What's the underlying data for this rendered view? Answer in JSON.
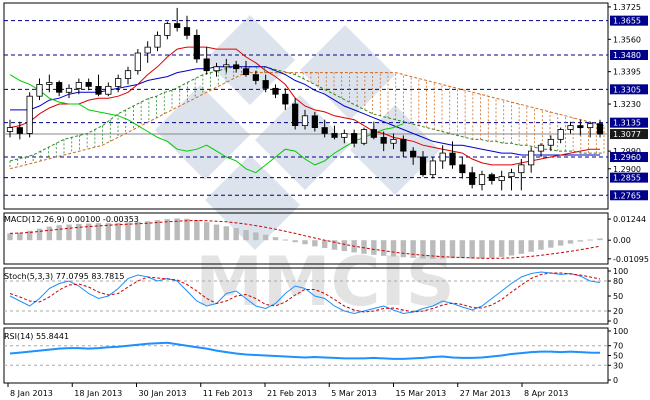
{
  "chart_data": {
    "type": "candlestick",
    "watermark": "MMCIS",
    "x_labels": [
      "8 Jan 2013",
      "18 Jan 2013",
      "30 Jan 2013",
      "11 Feb 2013",
      "21 Feb 2013",
      "5 Mar 2013",
      "15 Mar 2013",
      "27 Mar 2013",
      "8 Apr 2013"
    ],
    "price_axis": {
      "ylim": [
        1.2695,
        1.3745
      ],
      "ticks": [
        1.3725,
        1.3655,
        1.356,
        1.348,
        1.3395,
        1.3305,
        1.323,
        1.3135,
        1.3077,
        1.299,
        1.296,
        1.29,
        1.2855,
        1.2765
      ],
      "highlighted": [
        "1.3655",
        "1.3480",
        "1.3305",
        "1.3135",
        "1.3077",
        "1.2960",
        "1.2855",
        "1.2765"
      ],
      "current": "1.3077"
    },
    "candles": [
      [
        1.309,
        1.315,
        1.306,
        1.311
      ],
      [
        1.311,
        1.314,
        1.305,
        1.308
      ],
      [
        1.308,
        1.329,
        1.306,
        1.327
      ],
      [
        1.327,
        1.336,
        1.325,
        1.333
      ],
      [
        1.333,
        1.338,
        1.329,
        1.334
      ],
      [
        1.334,
        1.335,
        1.327,
        1.329
      ],
      [
        1.329,
        1.333,
        1.326,
        1.331
      ],
      [
        1.331,
        1.336,
        1.328,
        1.334
      ],
      [
        1.334,
        1.336,
        1.33,
        1.332
      ],
      [
        1.332,
        1.338,
        1.327,
        1.328
      ],
      [
        1.328,
        1.334,
        1.327,
        1.332
      ],
      [
        1.332,
        1.338,
        1.329,
        1.336
      ],
      [
        1.336,
        1.342,
        1.333,
        1.34
      ],
      [
        1.34,
        1.351,
        1.338,
        1.349
      ],
      [
        1.349,
        1.355,
        1.344,
        1.352
      ],
      [
        1.352,
        1.36,
        1.35,
        1.358
      ],
      [
        1.358,
        1.365,
        1.356,
        1.364
      ],
      [
        1.364,
        1.372,
        1.36,
        1.362
      ],
      [
        1.362,
        1.368,
        1.356,
        1.358
      ],
      [
        1.358,
        1.361,
        1.344,
        1.346
      ],
      [
        1.346,
        1.352,
        1.338,
        1.34
      ],
      [
        1.34,
        1.344,
        1.337,
        1.342
      ],
      [
        1.342,
        1.346,
        1.339,
        1.343
      ],
      [
        1.343,
        1.345,
        1.339,
        1.341
      ],
      [
        1.341,
        1.345,
        1.337,
        1.338
      ],
      [
        1.338,
        1.34,
        1.333,
        1.335
      ],
      [
        1.335,
        1.338,
        1.329,
        1.331
      ],
      [
        1.331,
        1.333,
        1.326,
        1.328
      ],
      [
        1.328,
        1.331,
        1.32,
        1.323
      ],
      [
        1.323,
        1.326,
        1.31,
        1.312
      ],
      [
        1.312,
        1.32,
        1.31,
        1.317
      ],
      [
        1.317,
        1.319,
        1.309,
        1.311
      ],
      [
        1.311,
        1.315,
        1.306,
        1.308
      ],
      [
        1.308,
        1.312,
        1.305,
        1.306
      ],
      [
        1.306,
        1.31,
        1.303,
        1.308
      ],
      [
        1.308,
        1.31,
        1.301,
        1.303
      ],
      [
        1.303,
        1.311,
        1.302,
        1.31
      ],
      [
        1.31,
        1.314,
        1.305,
        1.306
      ],
      [
        1.306,
        1.309,
        1.299,
        1.303
      ],
      [
        1.303,
        1.308,
        1.3,
        1.305
      ],
      [
        1.305,
        1.307,
        1.296,
        1.299
      ],
      [
        1.299,
        1.301,
        1.292,
        1.296
      ],
      [
        1.296,
        1.299,
        1.286,
        1.287
      ],
      [
        1.287,
        1.296,
        1.285,
        1.294
      ],
      [
        1.294,
        1.302,
        1.29,
        1.298
      ],
      [
        1.298,
        1.304,
        1.29,
        1.292
      ],
      [
        1.292,
        1.296,
        1.285,
        1.288
      ],
      [
        1.288,
        1.291,
        1.28,
        1.282
      ],
      [
        1.282,
        1.289,
        1.279,
        1.287
      ],
      [
        1.287,
        1.288,
        1.282,
        1.284
      ],
      [
        1.284,
        1.289,
        1.279,
        1.286
      ],
      [
        1.286,
        1.29,
        1.279,
        1.288
      ],
      [
        1.288,
        1.295,
        1.279,
        1.292
      ],
      [
        1.292,
        1.301,
        1.288,
        1.299
      ],
      [
        1.299,
        1.303,
        1.296,
        1.302
      ],
      [
        1.302,
        1.307,
        1.299,
        1.305
      ],
      [
        1.305,
        1.311,
        1.303,
        1.31
      ],
      [
        1.31,
        1.314,
        1.308,
        1.312
      ],
      [
        1.312,
        1.315,
        1.307,
        1.311
      ],
      [
        1.311,
        1.314,
        1.306,
        1.313
      ],
      [
        1.313,
        1.315,
        1.306,
        1.3077
      ]
    ],
    "tenkan": [
      1.311,
      1.312,
      1.314,
      1.318,
      1.321,
      1.323,
      1.323,
      1.323,
      1.325,
      1.326,
      1.326,
      1.327,
      1.329,
      1.333,
      1.338,
      1.342,
      1.347,
      1.351,
      1.352,
      1.352,
      1.352,
      1.351,
      1.351,
      1.351,
      1.347,
      1.344,
      1.34,
      1.337,
      1.333,
      1.326,
      1.322,
      1.32,
      1.319,
      1.317,
      1.316,
      1.315,
      1.312,
      1.309,
      1.308,
      1.306,
      1.305,
      1.304,
      1.302,
      1.301,
      1.3,
      1.299,
      1.298,
      1.295,
      1.293,
      1.292,
      1.292,
      1.292,
      1.293,
      1.294,
      1.295,
      1.296,
      1.297,
      1.298,
      1.299,
      1.3,
      1.3
    ],
    "kijun": [
      1.32,
      1.32,
      1.32,
      1.322,
      1.325,
      1.326,
      1.328,
      1.329,
      1.329,
      1.329,
      1.33,
      1.331,
      1.332,
      1.333,
      1.335,
      1.336,
      1.337,
      1.339,
      1.34,
      1.341,
      1.341,
      1.342,
      1.342,
      1.342,
      1.342,
      1.342,
      1.342,
      1.34,
      1.338,
      1.335,
      1.333,
      1.33,
      1.328,
      1.325,
      1.322,
      1.32,
      1.318,
      1.316,
      1.314,
      1.312,
      1.31,
      1.308,
      1.306,
      1.304,
      1.303,
      1.302,
      1.302,
      1.301,
      1.3,
      1.299,
      1.298,
      1.298,
      1.297,
      1.297,
      1.297,
      1.297,
      1.297,
      1.297,
      1.297,
      1.297,
      1.297
    ],
    "chikou": [
      1.338,
      1.335,
      1.333,
      1.33,
      1.326,
      1.324,
      1.323,
      1.323,
      1.32,
      1.319,
      1.318,
      1.317,
      1.315,
      1.312,
      1.309,
      1.306,
      1.304,
      1.3,
      1.299,
      1.3,
      1.302,
      1.299,
      1.296,
      1.294,
      1.29,
      1.288,
      1.292,
      1.296,
      1.3,
      1.299,
      1.295,
      1.292,
      1.294,
      1.298,
      1.301,
      1.304,
      1.306,
      1.308,
      1.31,
      1.311,
      1.313
    ],
    "senkou_a": [
      1.294,
      1.295,
      1.296,
      1.297,
      1.299,
      1.301,
      1.303,
      1.305,
      1.306,
      1.307,
      1.308,
      1.31,
      1.312,
      1.315,
      1.318,
      1.32,
      1.322,
      1.324,
      1.326,
      1.327,
      1.329,
      1.33,
      1.332,
      1.334,
      1.336,
      1.338,
      1.339,
      1.34,
      1.341,
      1.342,
      1.342,
      1.342,
      1.342,
      1.342,
      1.341,
      1.34,
      1.339,
      1.338,
      1.336,
      1.334,
      1.332,
      1.33,
      1.328,
      1.326,
      1.324,
      1.322,
      1.32,
      1.318,
      1.317,
      1.316,
      1.315,
      1.314,
      1.313,
      1.312,
      1.311,
      1.31,
      1.309,
      1.308,
      1.307,
      1.306,
      1.305,
      1.305,
      1.304,
      1.304,
      1.303,
      1.303,
      1.302,
      1.302,
      1.301,
      1.3,
      1.3,
      1.299,
      1.299,
      1.299,
      1.298,
      1.298,
      1.298,
      1.298
    ],
    "senkou_b": [
      1.29,
      1.291,
      1.292,
      1.293,
      1.294,
      1.295,
      1.296,
      1.297,
      1.298,
      1.299,
      1.3,
      1.301,
      1.302,
      1.304,
      1.306,
      1.308,
      1.31,
      1.312,
      1.314,
      1.316,
      1.318,
      1.32,
      1.322,
      1.324,
      1.326,
      1.328,
      1.33,
      1.332,
      1.334,
      1.336,
      1.338,
      1.339,
      1.339,
      1.339,
      1.339,
      1.339,
      1.339,
      1.339,
      1.339,
      1.339,
      1.339,
      1.339,
      1.339,
      1.339,
      1.339,
      1.339,
      1.339,
      1.339,
      1.339,
      1.339,
      1.339,
      1.338,
      1.337,
      1.336,
      1.335,
      1.334,
      1.333,
      1.332,
      1.331,
      1.33,
      1.329,
      1.328,
      1.327,
      1.326,
      1.325,
      1.324,
      1.323,
      1.322,
      1.321,
      1.32,
      1.319,
      1.318,
      1.317,
      1.316,
      1.315,
      1.314,
      1.313,
      1.312
    ],
    "macd": {
      "label": "MACD(12,26,9) 0.00100 -0.00353",
      "ticks": [
        0.01244,
        0.0,
        -0.01095
      ],
      "tick_labels": [
        "0.01244",
        "0.00",
        "-0.01095"
      ],
      "ylim": [
        -0.014,
        0.016
      ],
      "histogram": [
        0.004,
        0.0045,
        0.0055,
        0.0068,
        0.008,
        0.0088,
        0.0092,
        0.0096,
        0.0098,
        0.01,
        0.01,
        0.0102,
        0.0105,
        0.0108,
        0.0112,
        0.0118,
        0.0124,
        0.0128,
        0.0126,
        0.0118,
        0.0106,
        0.0092,
        0.0082,
        0.0072,
        0.006,
        0.0046,
        0.0032,
        0.0018,
        0.0004,
        -0.0012,
        -0.0024,
        -0.0036,
        -0.0046,
        -0.0056,
        -0.0064,
        -0.0072,
        -0.008,
        -0.0086,
        -0.0092,
        -0.0096,
        -0.01,
        -0.0104,
        -0.0108,
        -0.011,
        -0.0108,
        -0.0106,
        -0.0106,
        -0.0108,
        -0.0108,
        -0.0104,
        -0.0098,
        -0.009,
        -0.008,
        -0.0068,
        -0.0056,
        -0.0044,
        -0.0032,
        -0.002,
        -0.0008,
        0.0004,
        0.001
      ],
      "signal": [
        0.004,
        0.0042,
        0.0046,
        0.0052,
        0.0058,
        0.0064,
        0.007,
        0.0076,
        0.008,
        0.0084,
        0.0088,
        0.0091,
        0.0094,
        0.0097,
        0.01,
        0.0104,
        0.0108,
        0.0112,
        0.0115,
        0.0116,
        0.0115,
        0.0112,
        0.0108,
        0.0102,
        0.0095,
        0.0086,
        0.0076,
        0.0065,
        0.0053,
        0.004,
        0.0026,
        0.0013,
        0.0,
        -0.0012,
        -0.0024,
        -0.0035,
        -0.0045,
        -0.0054,
        -0.0062,
        -0.007,
        -0.0077,
        -0.0083,
        -0.0088,
        -0.0093,
        -0.0097,
        -0.01,
        -0.0102,
        -0.0104,
        -0.0106,
        -0.0107,
        -0.0106,
        -0.0104,
        -0.01,
        -0.0095,
        -0.0089,
        -0.0082,
        -0.0074,
        -0.0065,
        -0.0056,
        -0.0046,
        -0.0035
      ]
    },
    "stoch": {
      "label": "Stoch(5,3,3) 77.0795 83.7815",
      "ticks": [
        100,
        80,
        50,
        20,
        0
      ],
      "ylim": [
        0,
        100
      ],
      "main": [
        50,
        40,
        30,
        45,
        65,
        75,
        80,
        70,
        55,
        45,
        50,
        65,
        85,
        92,
        88,
        80,
        85,
        80,
        60,
        40,
        30,
        35,
        55,
        60,
        45,
        30,
        25,
        35,
        55,
        70,
        65,
        50,
        45,
        30,
        20,
        15,
        20,
        25,
        30,
        22,
        15,
        18,
        25,
        30,
        40,
        35,
        28,
        22,
        30,
        45,
        60,
        75,
        88,
        95,
        98,
        96,
        93,
        95,
        90,
        80,
        77
      ],
      "signal": [
        55,
        48,
        40,
        38,
        48,
        62,
        72,
        74,
        68,
        58,
        52,
        55,
        68,
        80,
        88,
        86,
        84,
        82,
        73,
        60,
        45,
        35,
        40,
        50,
        53,
        45,
        33,
        30,
        38,
        52,
        63,
        63,
        55,
        43,
        30,
        22,
        18,
        20,
        25,
        26,
        22,
        18,
        20,
        25,
        32,
        36,
        33,
        27,
        26,
        32,
        43,
        58,
        72,
        85,
        93,
        96,
        96,
        94,
        92,
        88,
        84
      ]
    },
    "rsi": {
      "label": "RSI(14) 55.8441",
      "ticks": [
        100,
        70,
        50,
        30,
        0
      ],
      "ylim": [
        0,
        100
      ],
      "values": [
        54,
        56,
        58,
        60,
        62,
        64,
        65,
        65,
        64,
        65,
        67,
        68,
        70,
        72,
        74,
        75,
        76,
        73,
        70,
        67,
        64,
        60,
        57,
        54,
        52,
        51,
        50,
        49,
        48,
        47,
        46,
        47,
        46,
        45,
        44,
        44,
        44,
        45,
        44,
        43,
        43,
        44,
        45,
        47,
        48,
        46,
        45,
        45,
        46,
        48,
        50,
        53,
        55,
        57,
        58,
        58,
        57,
        58,
        57,
        56,
        55.8
      ]
    },
    "colors": {
      "candle_up": "#ffffff",
      "candle_down": "#000000",
      "tenkan": "#dd0000",
      "kijun": "#0000cc",
      "chikou": "#00cc00",
      "cloud_up": "#2d8a2d",
      "cloud_down": "#d2691e",
      "macd_bars": "#bbbbbb",
      "macd_signal": "#cc0000",
      "stoch_main": "#1e90ff",
      "stoch_signal": "#cc0000",
      "rsi": "#1e90ff",
      "highlight_label": "#00008b"
    }
  }
}
